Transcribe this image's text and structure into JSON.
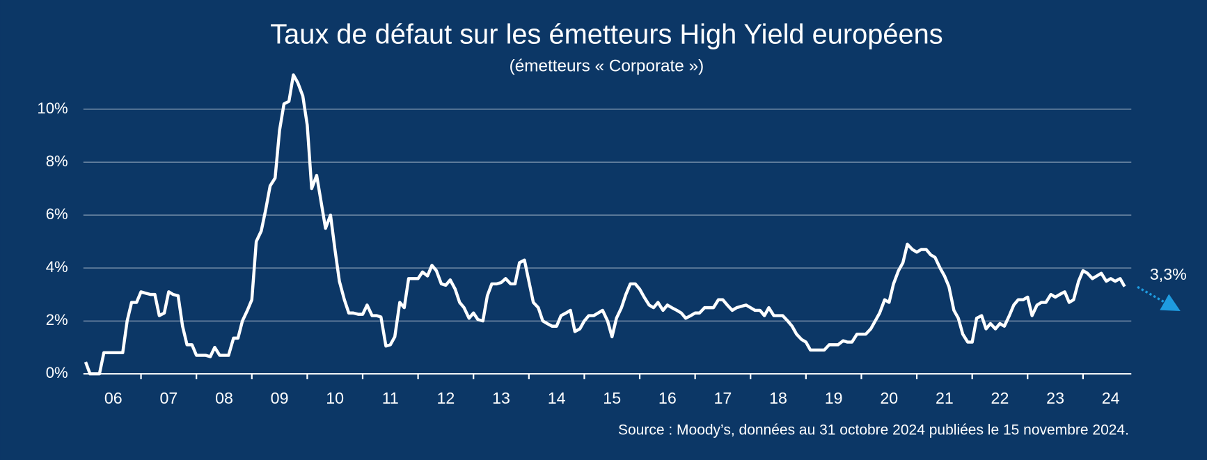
{
  "chart_data": {
    "type": "line",
    "title": "Taux de défaut sur les émetteurs High Yield européens",
    "subtitle": "(émetteurs « Corporate »)",
    "source": "Source : Moody’s, données au 31 octobre 2024 publiées le 15 novembre 2024.",
    "annotation": "3,3%",
    "color": "#ffffff",
    "grid": true,
    "xlim": [
      2005.96,
      2024.83
    ],
    "ylim": [
      0,
      11.5
    ],
    "yticks": [
      {
        "value": 0,
        "label": "0%"
      },
      {
        "value": 2,
        "label": "2%"
      },
      {
        "value": 4,
        "label": "4%"
      },
      {
        "value": 6,
        "label": "6%"
      },
      {
        "value": 8,
        "label": "8%"
      },
      {
        "value": 10,
        "label": "10%"
      }
    ],
    "xticks": [
      {
        "value": 2006.5,
        "label": "06"
      },
      {
        "value": 2007.5,
        "label": "07"
      },
      {
        "value": 2008.5,
        "label": "08"
      },
      {
        "value": 2009.5,
        "label": "09"
      },
      {
        "value": 2010.5,
        "label": "10"
      },
      {
        "value": 2011.5,
        "label": "11"
      },
      {
        "value": 2012.5,
        "label": "12"
      },
      {
        "value": 2013.5,
        "label": "13"
      },
      {
        "value": 2014.5,
        "label": "14"
      },
      {
        "value": 2015.5,
        "label": "15"
      },
      {
        "value": 2016.5,
        "label": "16"
      },
      {
        "value": 2017.5,
        "label": "17"
      },
      {
        "value": 2018.5,
        "label": "18"
      },
      {
        "value": 2019.5,
        "label": "19"
      },
      {
        "value": 2020.5,
        "label": "20"
      },
      {
        "value": 2021.5,
        "label": "21"
      },
      {
        "value": 2022.5,
        "label": "22"
      },
      {
        "value": 2023.5,
        "label": "23"
      },
      {
        "value": 2024.5,
        "label": "24"
      }
    ],
    "x": [
      2006.0,
      2006.08,
      2006.17,
      2006.25,
      2006.33,
      2006.42,
      2006.5,
      2006.58,
      2006.67,
      2006.75,
      2006.83,
      2006.92,
      2007.0,
      2007.08,
      2007.17,
      2007.25,
      2007.33,
      2007.42,
      2007.5,
      2007.58,
      2007.67,
      2007.75,
      2007.83,
      2007.92,
      2008.0,
      2008.08,
      2008.17,
      2008.25,
      2008.33,
      2008.42,
      2008.5,
      2008.58,
      2008.67,
      2008.75,
      2008.83,
      2008.92,
      2009.0,
      2009.08,
      2009.17,
      2009.25,
      2009.33,
      2009.42,
      2009.5,
      2009.58,
      2009.67,
      2009.75,
      2009.83,
      2009.92,
      2010.0,
      2010.08,
      2010.17,
      2010.25,
      2010.33,
      2010.42,
      2010.5,
      2010.58,
      2010.67,
      2010.75,
      2010.83,
      2010.92,
      2011.0,
      2011.08,
      2011.17,
      2011.25,
      2011.33,
      2011.42,
      2011.5,
      2011.58,
      2011.67,
      2011.75,
      2011.83,
      2011.92,
      2012.0,
      2012.08,
      2012.17,
      2012.25,
      2012.33,
      2012.42,
      2012.5,
      2012.58,
      2012.67,
      2012.75,
      2012.83,
      2012.92,
      2013.0,
      2013.08,
      2013.17,
      2013.25,
      2013.33,
      2013.42,
      2013.5,
      2013.58,
      2013.67,
      2013.75,
      2013.83,
      2013.92,
      2014.0,
      2014.08,
      2014.17,
      2014.25,
      2014.33,
      2014.42,
      2014.5,
      2014.58,
      2014.67,
      2014.75,
      2014.83,
      2014.92,
      2015.0,
      2015.08,
      2015.17,
      2015.25,
      2015.33,
      2015.42,
      2015.5,
      2015.58,
      2015.67,
      2015.75,
      2015.83,
      2015.92,
      2016.0,
      2016.08,
      2016.17,
      2016.25,
      2016.33,
      2016.42,
      2016.5,
      2016.58,
      2016.67,
      2016.75,
      2016.83,
      2016.92,
      2017.0,
      2017.08,
      2017.17,
      2017.25,
      2017.33,
      2017.42,
      2017.5,
      2017.58,
      2017.67,
      2017.75,
      2017.83,
      2017.92,
      2018.0,
      2018.08,
      2018.17,
      2018.25,
      2018.33,
      2018.42,
      2018.5,
      2018.58,
      2018.67,
      2018.75,
      2018.83,
      2018.92,
      2019.0,
      2019.08,
      2019.17,
      2019.25,
      2019.33,
      2019.42,
      2019.5,
      2019.58,
      2019.67,
      2019.75,
      2019.83,
      2019.92,
      2020.0,
      2020.08,
      2020.17,
      2020.25,
      2020.33,
      2020.42,
      2020.5,
      2020.58,
      2020.67,
      2020.75,
      2020.83,
      2020.92,
      2021.0,
      2021.08,
      2021.17,
      2021.25,
      2021.33,
      2021.42,
      2021.5,
      2021.58,
      2021.67,
      2021.75,
      2021.83,
      2021.92,
      2022.0,
      2022.08,
      2022.17,
      2022.25,
      2022.33,
      2022.42,
      2022.5,
      2022.58,
      2022.67,
      2022.75,
      2022.83,
      2022.92,
      2023.0,
      2023.08,
      2023.17,
      2023.25,
      2023.33,
      2023.42,
      2023.5,
      2023.58,
      2023.67,
      2023.75,
      2023.83,
      2023.92,
      2024.0,
      2024.08,
      2024.17,
      2024.25,
      2024.33,
      2024.42,
      2024.5,
      2024.58,
      2024.67,
      2024.75
    ],
    "values": [
      0.45,
      0.0,
      0.0,
      0.0,
      0.8,
      0.8,
      0.8,
      0.8,
      0.8,
      2.0,
      2.7,
      2.7,
      3.1,
      3.05,
      3.0,
      3.0,
      2.2,
      2.3,
      3.1,
      3.0,
      2.95,
      1.8,
      1.1,
      1.1,
      0.7,
      0.7,
      0.7,
      0.65,
      1.0,
      0.7,
      0.7,
      0.7,
      1.35,
      1.35,
      2.0,
      2.4,
      2.8,
      5.0,
      5.4,
      6.2,
      7.1,
      7.4,
      9.2,
      10.2,
      10.3,
      11.3,
      11.0,
      10.5,
      9.4,
      7.0,
      7.5,
      6.5,
      5.5,
      6.0,
      4.7,
      3.5,
      2.8,
      2.3,
      2.3,
      2.25,
      2.25,
      2.6,
      2.2,
      2.2,
      2.15,
      1.05,
      1.1,
      1.4,
      2.7,
      2.5,
      3.6,
      3.6,
      3.6,
      3.85,
      3.7,
      4.1,
      3.9,
      3.4,
      3.35,
      3.55,
      3.2,
      2.7,
      2.5,
      2.1,
      2.3,
      2.05,
      2.0,
      2.95,
      3.4,
      3.4,
      3.45,
      3.6,
      3.4,
      3.4,
      4.2,
      4.3,
      3.5,
      2.7,
      2.5,
      2.0,
      1.9,
      1.8,
      1.8,
      2.2,
      2.3,
      2.4,
      1.6,
      1.7,
      2.0,
      2.2,
      2.2,
      2.3,
      2.4,
      2.0,
      1.4,
      2.1,
      2.5,
      3.0,
      3.4,
      3.4,
      3.2,
      2.9,
      2.6,
      2.5,
      2.7,
      2.4,
      2.6,
      2.5,
      2.4,
      2.3,
      2.1,
      2.2,
      2.3,
      2.3,
      2.5,
      2.5,
      2.5,
      2.8,
      2.8,
      2.6,
      2.4,
      2.5,
      2.55,
      2.6,
      2.5,
      2.4,
      2.4,
      2.2,
      2.5,
      2.2,
      2.2,
      2.2,
      2.0,
      1.8,
      1.5,
      1.3,
      1.2,
      0.9,
      0.9,
      0.9,
      0.9,
      1.1,
      1.1,
      1.1,
      1.25,
      1.2,
      1.2,
      1.5,
      1.5,
      1.5,
      1.7,
      2.0,
      2.3,
      2.8,
      2.7,
      3.4,
      3.9,
      4.2,
      4.9,
      4.7,
      4.6,
      4.7,
      4.7,
      4.5,
      4.4,
      4.0,
      3.7,
      3.3,
      2.4,
      2.1,
      1.5,
      1.2,
      1.2,
      2.1,
      2.2,
      1.7,
      1.9,
      1.7,
      1.9,
      1.8,
      2.2,
      2.6,
      2.8,
      2.8,
      2.9,
      2.2,
      2.6,
      2.7,
      2.7,
      3.0,
      2.9,
      3.0,
      3.1,
      2.7,
      2.8,
      3.5,
      3.9,
      3.8,
      3.6,
      3.7,
      3.8,
      3.5,
      3.6,
      3.5,
      3.6,
      3.3
    ]
  }
}
